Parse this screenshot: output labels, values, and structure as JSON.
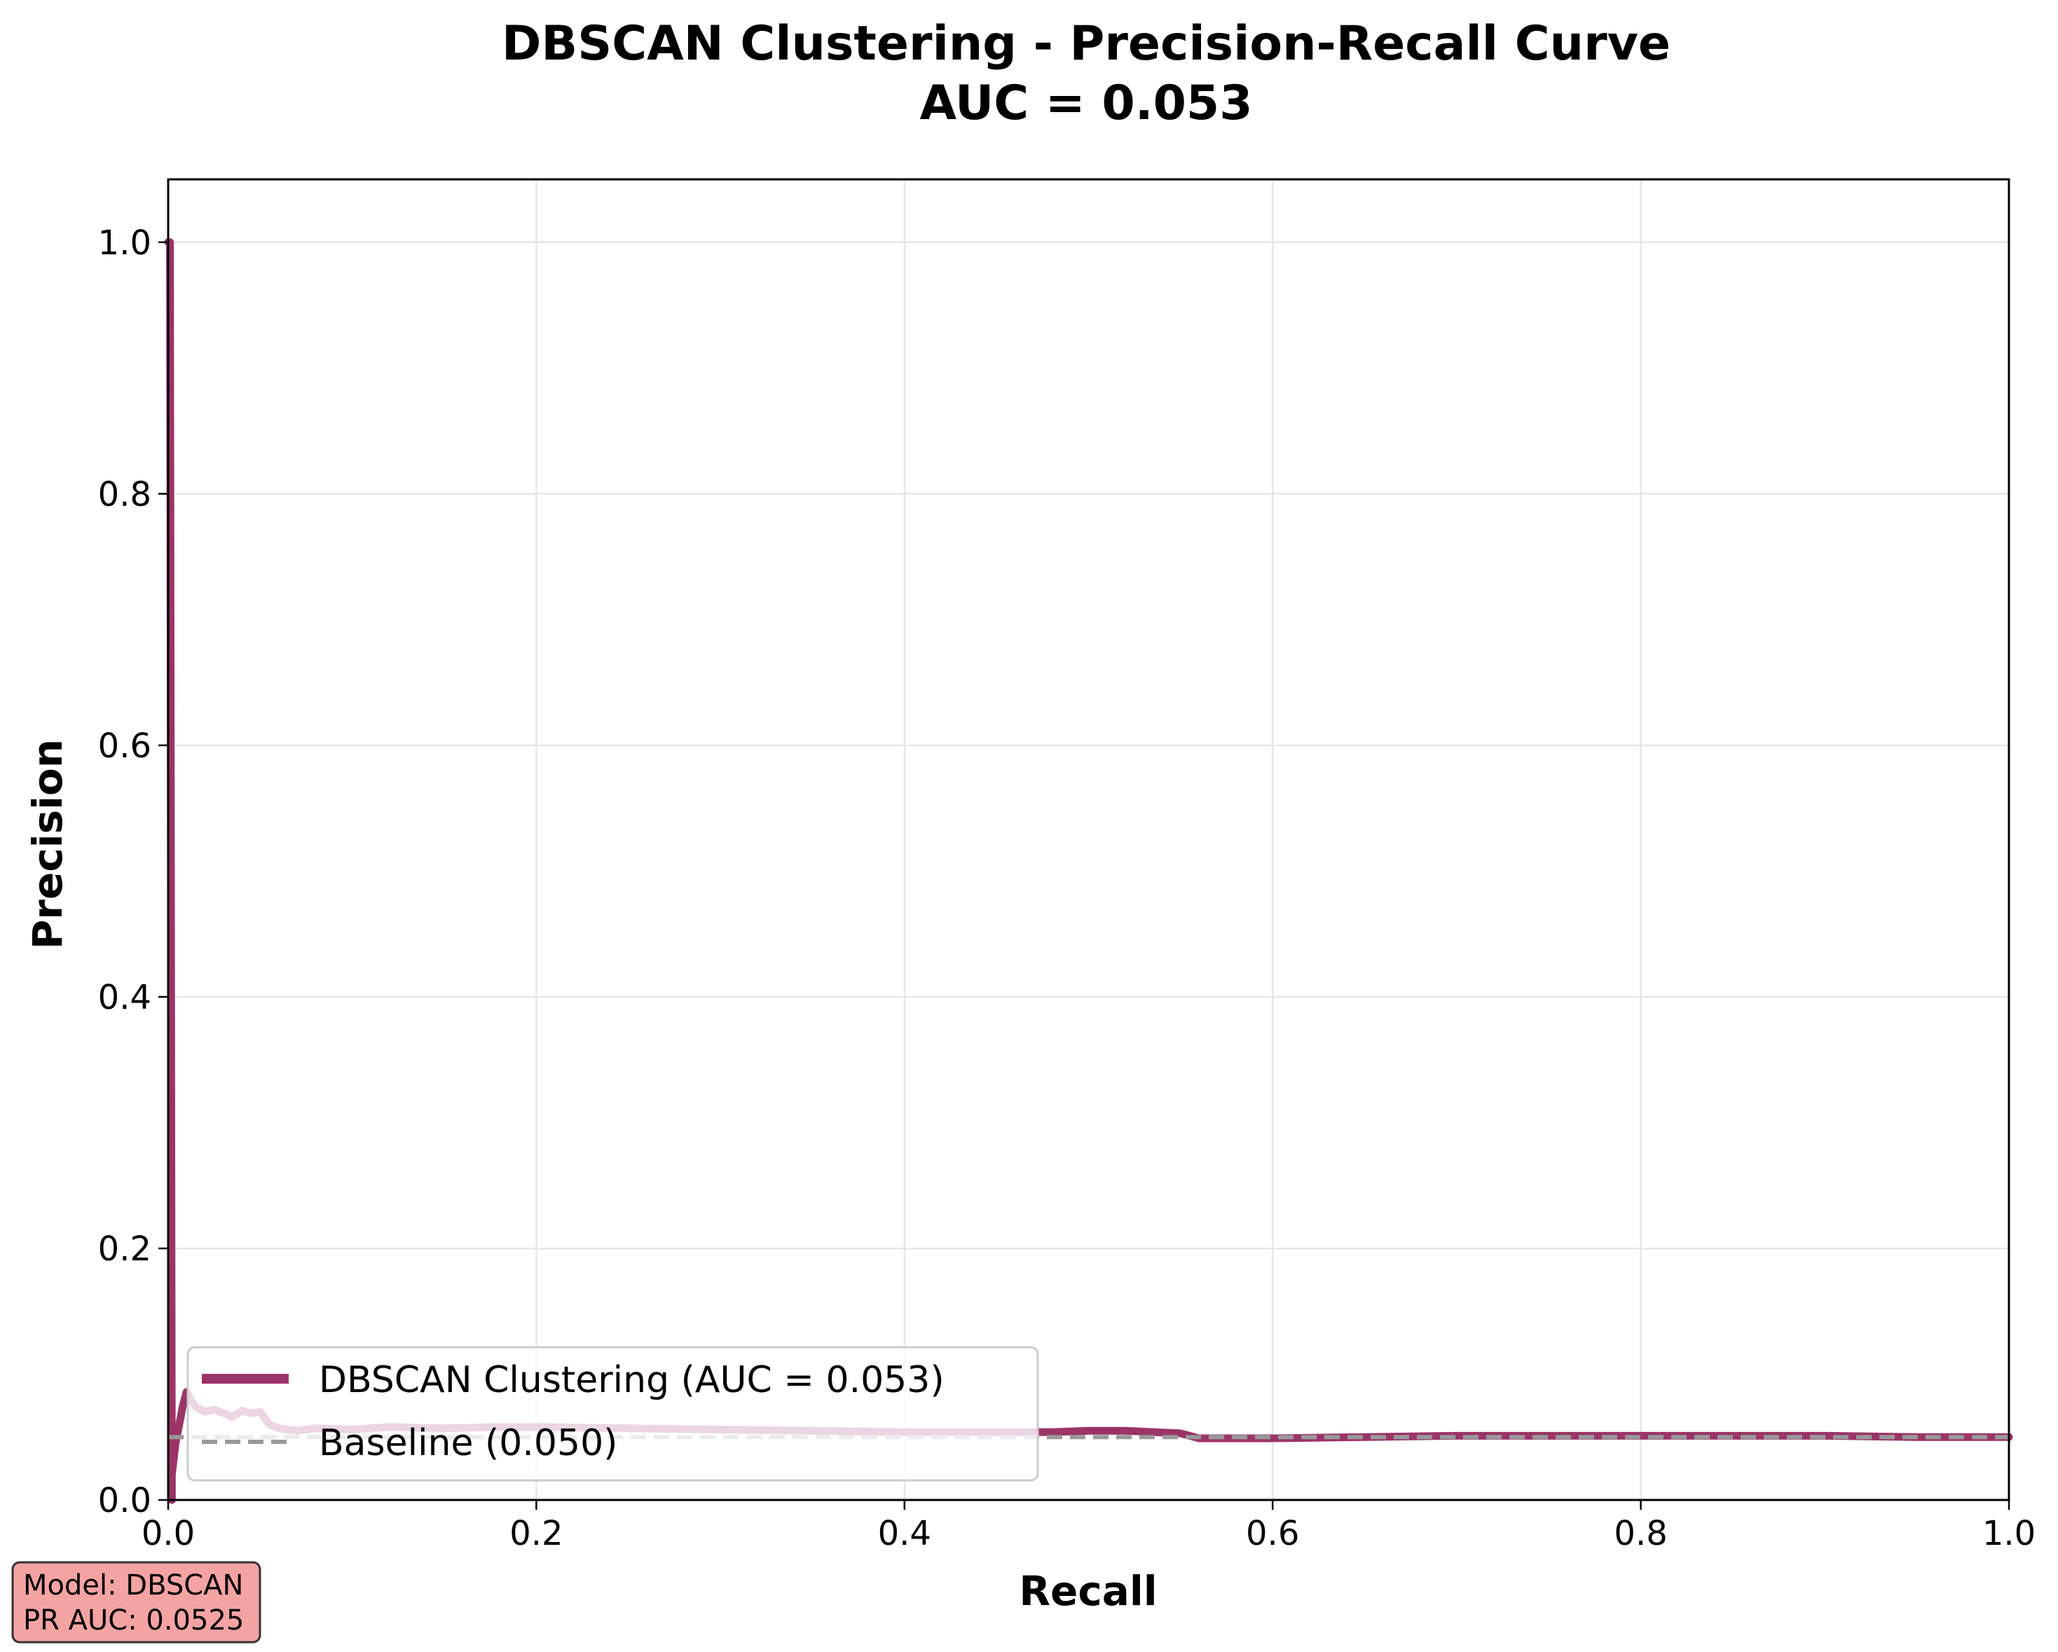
{
  "chart_data": {
    "type": "line",
    "title": "DBSCAN Clustering - Precision-Recall Curve",
    "subtitle": "AUC = 0.053",
    "xlabel": "Recall",
    "ylabel": "Precision",
    "xlim": [
      0.0,
      1.0
    ],
    "ylim": [
      0.0,
      1.05
    ],
    "xticks": [
      "0.0",
      "0.2",
      "0.4",
      "0.6",
      "0.8",
      "1.0"
    ],
    "yticks": [
      "0.0",
      "0.2",
      "0.4",
      "0.6",
      "0.8",
      "1.0"
    ],
    "grid": true,
    "legend_position": "lower-left",
    "series": [
      {
        "name": "DBSCAN Clustering (AUC = 0.053)",
        "color": "#9b3468",
        "style": "solid",
        "x": [
          0.0,
          0.001,
          0.002,
          0.002,
          0.004,
          0.006,
          0.008,
          0.01,
          0.012,
          0.015,
          0.02,
          0.025,
          0.03,
          0.035,
          0.04,
          0.045,
          0.05,
          0.055,
          0.06,
          0.07,
          0.08,
          0.1,
          0.12,
          0.15,
          0.18,
          0.2,
          0.25,
          0.3,
          0.35,
          0.4,
          0.45,
          0.48,
          0.5,
          0.52,
          0.55,
          0.56,
          0.6,
          0.65,
          0.7,
          0.75,
          0.8,
          0.85,
          0.9,
          0.95,
          1.0
        ],
        "y": [
          1.0,
          1.0,
          0.0,
          0.02,
          0.045,
          0.06,
          0.075,
          0.086,
          0.08,
          0.074,
          0.07,
          0.072,
          0.069,
          0.066,
          0.071,
          0.069,
          0.07,
          0.06,
          0.057,
          0.055,
          0.057,
          0.056,
          0.058,
          0.057,
          0.058,
          0.058,
          0.057,
          0.056,
          0.055,
          0.054,
          0.054,
          0.054,
          0.055,
          0.055,
          0.053,
          0.049,
          0.049,
          0.05,
          0.051,
          0.051,
          0.051,
          0.051,
          0.051,
          0.05,
          0.05
        ]
      },
      {
        "name": "Baseline (0.050)",
        "color": "#999999",
        "style": "dashed",
        "x": [
          0.0,
          1.0
        ],
        "y": [
          0.05,
          0.05
        ]
      }
    ]
  },
  "info_box": {
    "line1": "Model: DBSCAN",
    "line2": "PR AUC: 0.0525",
    "background": "#f4a3a3"
  }
}
